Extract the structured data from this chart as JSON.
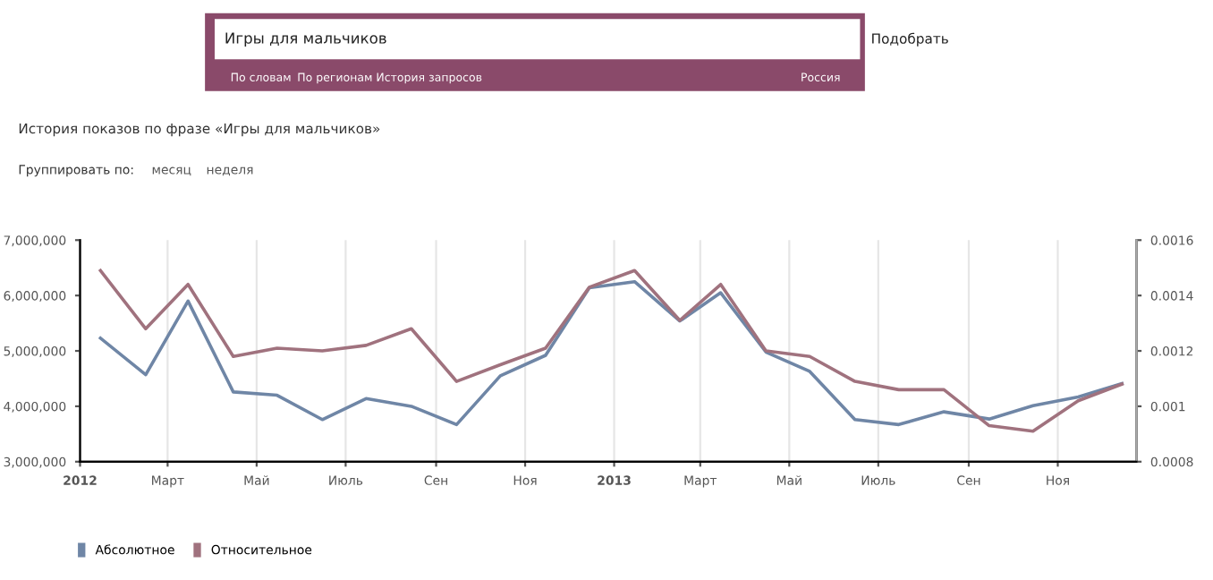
{
  "chart_data": {
    "type": "line",
    "title": "История показов по фразе «Игры для мальчиков»",
    "annotations": [
      "Игры для мальчиков",
      "Подобрать",
      "По словам",
      "По регионам",
      "История запросов",
      "Россия",
      "Группировать по:",
      "месяц",
      "неделя"
    ],
    "x": [
      "2012-01-15",
      "2012-02-15",
      "2012-03-15",
      "2012-04-15",
      "2012-05-15",
      "2012-06-15",
      "2012-07-15",
      "2012-08-15",
      "2012-09-15",
      "2012-10-15",
      "2012-11-15",
      "2012-12-15",
      "2013-01-15",
      "2013-02-15",
      "2013-03-15",
      "2013-04-15",
      "2013-05-15",
      "2013-06-15",
      "2013-07-15",
      "2013-08-15",
      "2013-09-15",
      "2013-10-15",
      "2013-11-15",
      "2013-12-15"
    ],
    "series": [
      {
        "name": "Абсолютное",
        "color": "#6f86a6",
        "values": [
          5230000,
          4570000,
          5900000,
          4260000,
          4200000,
          3760000,
          4140000,
          4000000,
          3670000,
          4550000,
          4920000,
          6140000,
          6250000,
          5540000,
          6050000,
          4980000,
          4630000,
          3760000,
          3670000,
          3900000,
          3770000,
          4010000,
          4170000,
          4410000
        ]
      },
      {
        "name": "Относительное",
        "color": "#a0727e",
        "axis": "y2",
        "values": [
          0.00149,
          0.00128,
          0.00144,
          0.00118,
          0.00121,
          0.0012,
          0.00122,
          0.00128,
          0.00109,
          0.00115,
          0.00121,
          0.00143,
          0.00149,
          0.00131,
          0.00144,
          0.0012,
          0.00118,
          0.00109,
          0.00106,
          0.00106,
          0.00093,
          0.00091,
          0.00102,
          0.00108
        ]
      }
    ],
    "xlim": [
      "2012-01-01",
      "2013-12-25"
    ],
    "xticks": [
      {
        "value": "2012-01-01",
        "label": "2012"
      },
      {
        "value": "2012-03-01",
        "label": "Март"
      },
      {
        "value": "2012-05-01",
        "label": "Май"
      },
      {
        "value": "2012-07-01",
        "label": "Июль"
      },
      {
        "value": "2012-09-01",
        "label": "Сен"
      },
      {
        "value": "2012-11-01",
        "label": "Ноя"
      },
      {
        "value": "2013-01-01",
        "label": "2013"
      },
      {
        "value": "2013-03-01",
        "label": "Март"
      },
      {
        "value": "2013-05-01",
        "label": "Май"
      },
      {
        "value": "2013-07-01",
        "label": "Июль"
      },
      {
        "value": "2013-09-01",
        "label": "Сен"
      },
      {
        "value": "2013-11-01",
        "label": "Ноя"
      }
    ],
    "ylim": [
      3000000,
      7000000
    ],
    "yticks": [
      {
        "value": 3000000,
        "label": "3,000,000"
      },
      {
        "value": 4000000,
        "label": "4,000,000"
      },
      {
        "value": 5000000,
        "label": "5,000,000"
      },
      {
        "value": 6000000,
        "label": "6,000,000"
      },
      {
        "value": 7000000,
        "label": "7,000,000"
      }
    ],
    "y2lim": [
      0.0008,
      0.0016
    ],
    "y2ticks": [
      0.0008,
      0.001,
      0.0012,
      0.0014,
      0.0016
    ],
    "grid": "x",
    "legend": "bottom left",
    "marker": "none",
    "line_style": "solid"
  }
}
